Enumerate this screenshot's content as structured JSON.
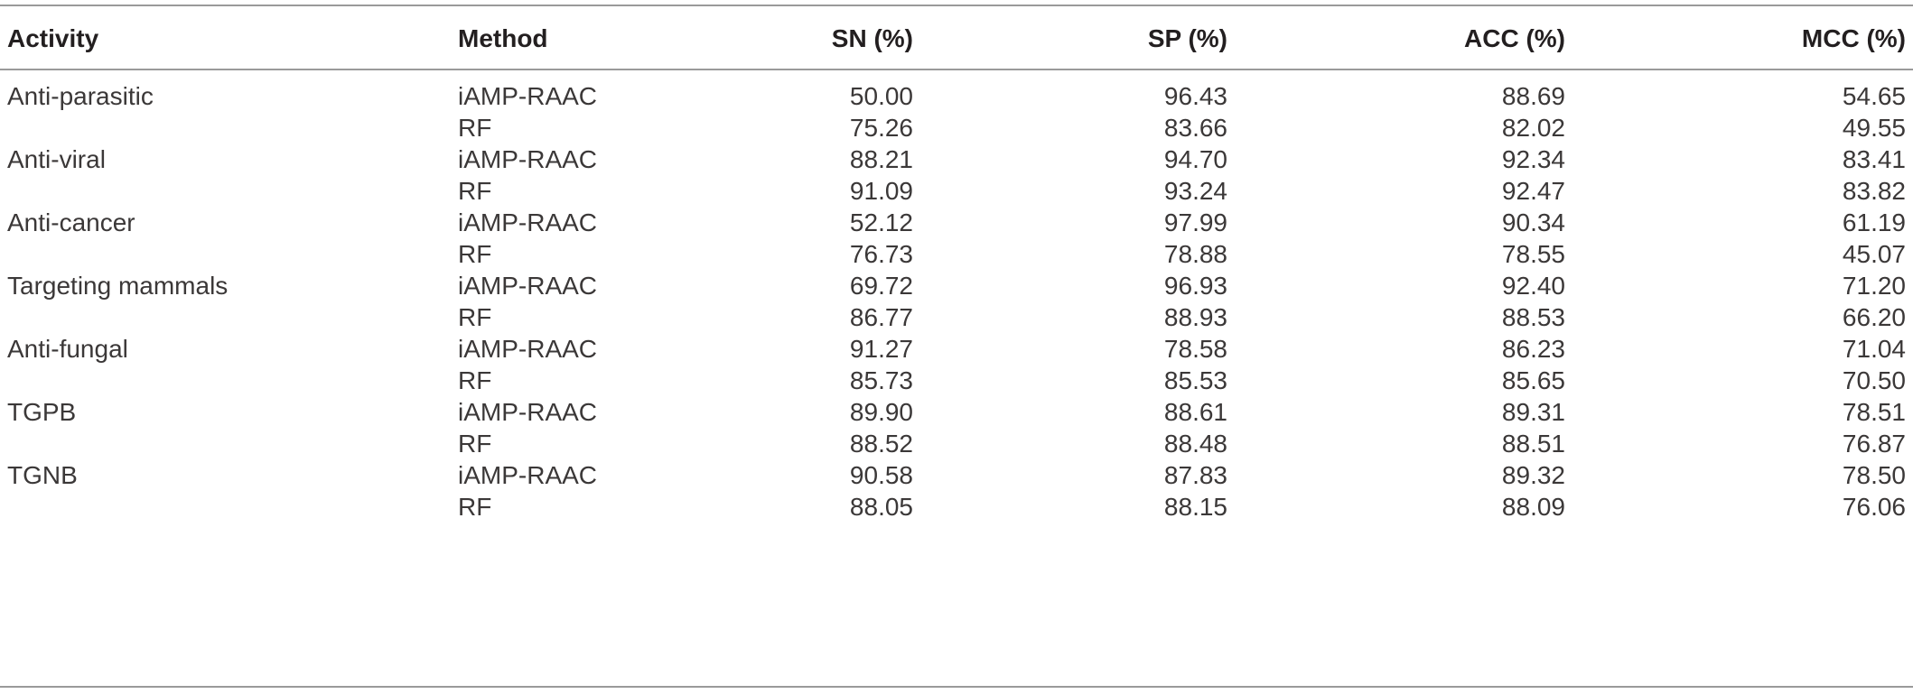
{
  "table": {
    "headers": {
      "activity": "Activity",
      "method": "Method",
      "sn": "SN (%)",
      "sp": "SP (%)",
      "acc": "ACC (%)",
      "mcc": "MCC (%)"
    },
    "rows": [
      {
        "activity": "Anti-parasitic",
        "method": "iAMP-RAAC",
        "sn": "50.00",
        "sp": "96.43",
        "acc": "88.69",
        "mcc": "54.65"
      },
      {
        "activity": "",
        "method": "RF",
        "sn": "75.26",
        "sp": "83.66",
        "acc": "82.02",
        "mcc": "49.55"
      },
      {
        "activity": "Anti-viral",
        "method": "iAMP-RAAC",
        "sn": "88.21",
        "sp": "94.70",
        "acc": "92.34",
        "mcc": "83.41"
      },
      {
        "activity": "",
        "method": "RF",
        "sn": "91.09",
        "sp": "93.24",
        "acc": "92.47",
        "mcc": "83.82"
      },
      {
        "activity": "Anti-cancer",
        "method": "iAMP-RAAC",
        "sn": "52.12",
        "sp": "97.99",
        "acc": "90.34",
        "mcc": "61.19"
      },
      {
        "activity": "",
        "method": "RF",
        "sn": "76.73",
        "sp": "78.88",
        "acc": "78.55",
        "mcc": "45.07"
      },
      {
        "activity": "Targeting mammals",
        "method": "iAMP-RAAC",
        "sn": "69.72",
        "sp": "96.93",
        "acc": "92.40",
        "mcc": "71.20"
      },
      {
        "activity": "",
        "method": "RF",
        "sn": "86.77",
        "sp": "88.93",
        "acc": "88.53",
        "mcc": "66.20"
      },
      {
        "activity": "Anti-fungal",
        "method": "iAMP-RAAC",
        "sn": "91.27",
        "sp": "78.58",
        "acc": "86.23",
        "mcc": "71.04"
      },
      {
        "activity": "",
        "method": "RF",
        "sn": "85.73",
        "sp": "85.53",
        "acc": "85.65",
        "mcc": "70.50"
      },
      {
        "activity": "TGPB",
        "method": "iAMP-RAAC",
        "sn": "89.90",
        "sp": "88.61",
        "acc": "89.31",
        "mcc": "78.51"
      },
      {
        "activity": "",
        "method": "RF",
        "sn": "88.52",
        "sp": "88.48",
        "acc": "88.51",
        "mcc": "76.87"
      },
      {
        "activity": "TGNB",
        "method": "iAMP-RAAC",
        "sn": "90.58",
        "sp": "87.83",
        "acc": "89.32",
        "mcc": "78.50"
      },
      {
        "activity": "",
        "method": "RF",
        "sn": "88.05",
        "sp": "88.15",
        "acc": "88.09",
        "mcc": "76.06"
      }
    ]
  }
}
